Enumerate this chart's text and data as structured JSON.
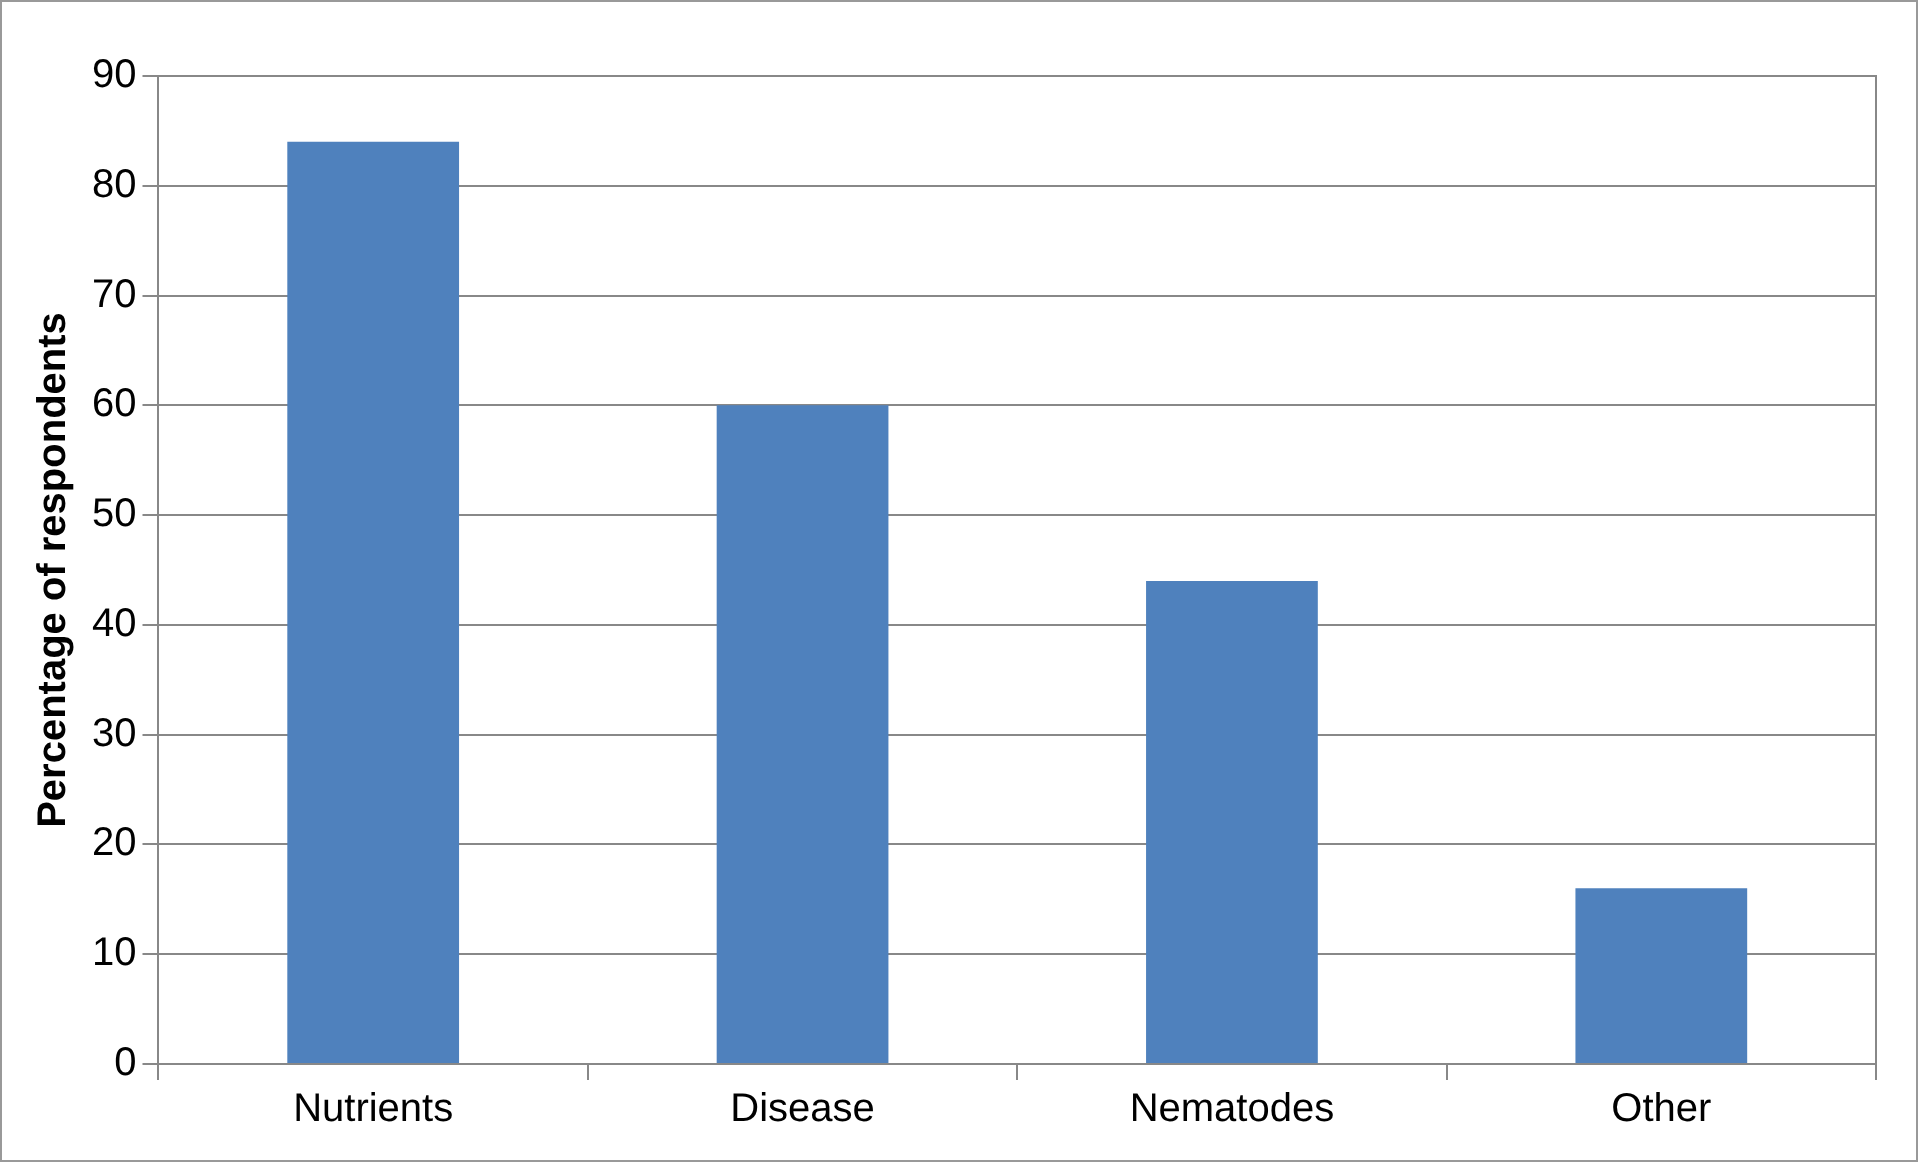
{
  "chart_data": {
    "type": "bar",
    "ylabel": "Percentage of respondents",
    "categories": [
      "Nutrients",
      "Disease",
      "Nematodes",
      "Other"
    ],
    "values": [
      84,
      60,
      44,
      16
    ],
    "color": "#4f81bd",
    "ylim": [
      0,
      90
    ],
    "yticks": [
      0,
      10,
      20,
      30,
      40,
      50,
      60,
      70,
      80,
      90
    ],
    "grid": "y",
    "legend": false
  }
}
